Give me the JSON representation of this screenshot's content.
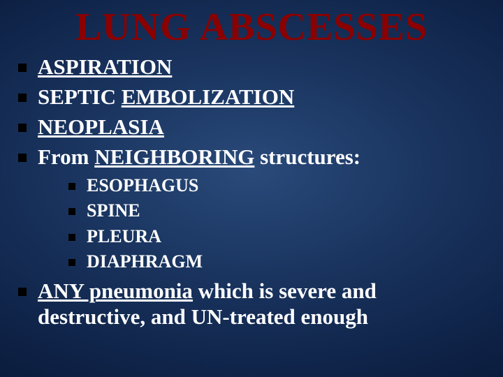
{
  "slide": {
    "background_gradient": [
      "#2a4a7a",
      "#1a3560",
      "#0f2348",
      "#061530",
      "#000000"
    ],
    "title": {
      "text": "LUNG ABSCESSES",
      "color": "#8b0000",
      "fontsize": 56,
      "weight": "bold"
    },
    "bullets": {
      "level1_fontsize": 31,
      "level2_fontsize": 26,
      "bullet_marker_color": "#000000",
      "items": [
        {
          "pre": "",
          "underline": "ASPIRATION",
          "post": ""
        },
        {
          "pre": "SEPTIC ",
          "underline": "EMBOLIZATION",
          "post": ""
        },
        {
          "pre": "",
          "underline": "NEOPLASIA",
          "post": ""
        },
        {
          "pre": "From ",
          "underline": "NEIGHBORING",
          "post": " structures:",
          "children": [
            {
              "text": "ESOPHAGUS"
            },
            {
              "text": "SPINE"
            },
            {
              "text": "PLEURA"
            },
            {
              "text": "DIAPHRAGM"
            }
          ]
        },
        {
          "pre": "",
          "underline": "ANY pneumonia",
          "post": " which is severe and destructive, and UN-treated enough"
        }
      ]
    }
  }
}
